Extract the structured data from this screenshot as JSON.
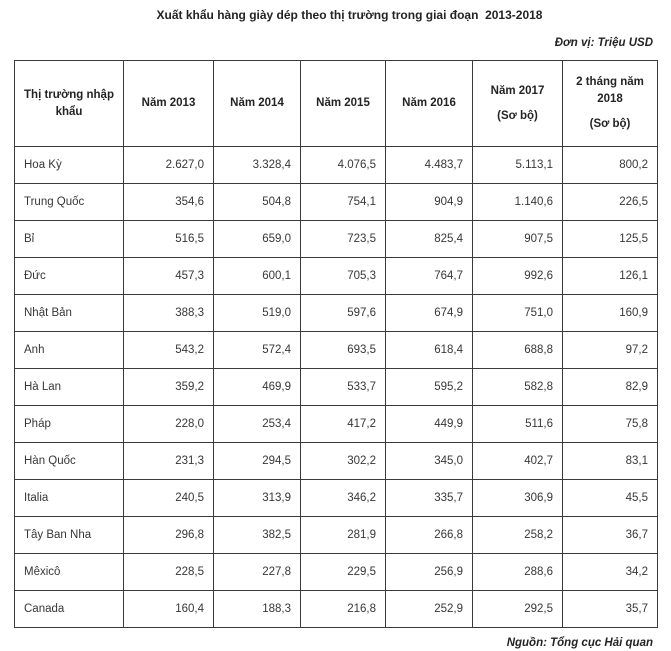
{
  "title": "Xuất khẩu hàng giày dép theo thị trường trong giai đoạn  2013-2018",
  "unit_label": "Đơn vị: Triệu USD",
  "source_label": "Nguồn: Tổng cục Hải quan",
  "colors": {
    "text": "#373737",
    "heading": "#242424",
    "border": "#3a3a3a",
    "background": "#ffffff"
  },
  "table": {
    "columns": [
      {
        "label": "Thị trường nhập khẩu",
        "sub": ""
      },
      {
        "label": "Năm 2013",
        "sub": ""
      },
      {
        "label": "Năm 2014",
        "sub": ""
      },
      {
        "label": "Năm 2015",
        "sub": ""
      },
      {
        "label": "Năm 2016",
        "sub": ""
      },
      {
        "label": "Năm 2017",
        "sub": "(Sơ bộ)"
      },
      {
        "label": "2 tháng năm 2018",
        "sub": "(Sơ bộ)"
      }
    ],
    "rows": [
      [
        "Hoa Kỳ",
        "2.627,0",
        "3.328,4",
        "4.076,5",
        "4.483,7",
        "5.113,1",
        "800,2"
      ],
      [
        "Trung Quốc",
        "354,6",
        "504,8",
        "754,1",
        "904,9",
        "1.140,6",
        "226,5"
      ],
      [
        "Bỉ",
        "516,5",
        "659,0",
        "723,5",
        "825,4",
        "907,5",
        "125,5"
      ],
      [
        "Đức",
        "457,3",
        "600,1",
        "705,3",
        "764,7",
        "992,6",
        "126,1"
      ],
      [
        "Nhật Bản",
        "388,3",
        "519,0",
        "597,6",
        "674,9",
        "751,0",
        "160,9"
      ],
      [
        "Anh",
        "543,2",
        "572,4",
        "693,5",
        "618,4",
        "688,8",
        "97,2"
      ],
      [
        "Hà Lan",
        "359,2",
        "469,9",
        "533,7",
        "595,2",
        "582,8",
        "82,9"
      ],
      [
        "Pháp",
        "228,0",
        "253,4",
        "417,2",
        "449,9",
        "511,6",
        "75,8"
      ],
      [
        "Hàn Quốc",
        "231,3",
        "294,5",
        "302,2",
        "345,0",
        "402,7",
        "83,1"
      ],
      [
        "Italia",
        "240,5",
        "313,9",
        "346,2",
        "335,7",
        "306,9",
        "45,5"
      ],
      [
        "Tây Ban Nha",
        "296,8",
        "382,5",
        "281,9",
        "266,8",
        "258,2",
        "36,7"
      ],
      [
        "Mêxicô",
        "228,5",
        "227,8",
        "229,5",
        "256,9",
        "288,6",
        "34,2"
      ],
      [
        "Canada",
        "160,4",
        "188,3",
        "216,8",
        "252,9",
        "292,5",
        "35,7"
      ]
    ]
  },
  "chart_data": {
    "type": "table",
    "title": "Xuất khẩu hàng giày dép theo thị trường trong giai đoạn 2013-2018",
    "unit": "Triệu USD",
    "source": "Tổng cục Hải quan",
    "row_header": "Thị trường nhập khẩu",
    "columns": [
      "Năm 2013",
      "Năm 2014",
      "Năm 2015",
      "Năm 2016",
      "Năm 2017 (Sơ bộ)",
      "2 tháng năm 2018 (Sơ bộ)"
    ],
    "series": [
      {
        "name": "Hoa Kỳ",
        "values": [
          2627.0,
          3328.4,
          4076.5,
          4483.7,
          5113.1,
          800.2
        ]
      },
      {
        "name": "Trung Quốc",
        "values": [
          354.6,
          504.8,
          754.1,
          904.9,
          1140.6,
          226.5
        ]
      },
      {
        "name": "Bỉ",
        "values": [
          516.5,
          659.0,
          723.5,
          825.4,
          907.5,
          125.5
        ]
      },
      {
        "name": "Đức",
        "values": [
          457.3,
          600.1,
          705.3,
          764.7,
          992.6,
          126.1
        ]
      },
      {
        "name": "Nhật Bản",
        "values": [
          388.3,
          519.0,
          597.6,
          674.9,
          751.0,
          160.9
        ]
      },
      {
        "name": "Anh",
        "values": [
          543.2,
          572.4,
          693.5,
          618.4,
          688.8,
          97.2
        ]
      },
      {
        "name": "Hà Lan",
        "values": [
          359.2,
          469.9,
          533.7,
          595.2,
          582.8,
          82.9
        ]
      },
      {
        "name": "Pháp",
        "values": [
          228.0,
          253.4,
          417.2,
          449.9,
          511.6,
          75.8
        ]
      },
      {
        "name": "Hàn Quốc",
        "values": [
          231.3,
          294.5,
          302.2,
          345.0,
          402.7,
          83.1
        ]
      },
      {
        "name": "Italia",
        "values": [
          240.5,
          313.9,
          346.2,
          335.7,
          306.9,
          45.5
        ]
      },
      {
        "name": "Tây Ban Nha",
        "values": [
          296.8,
          382.5,
          281.9,
          266.8,
          258.2,
          36.7
        ]
      },
      {
        "name": "Mêxicô",
        "values": [
          228.5,
          227.8,
          229.5,
          256.9,
          288.6,
          34.2
        ]
      },
      {
        "name": "Canada",
        "values": [
          160.4,
          188.3,
          216.8,
          252.9,
          292.5,
          35.7
        ]
      }
    ]
  }
}
